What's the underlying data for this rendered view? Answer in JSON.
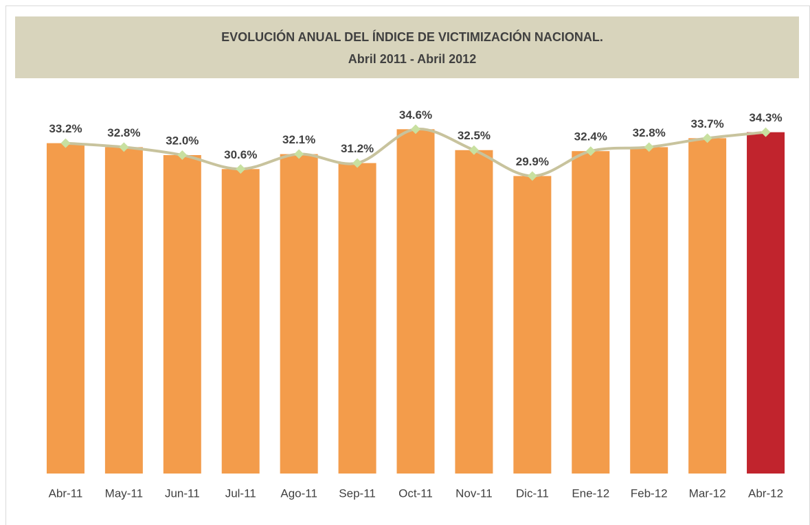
{
  "chart_data": {
    "type": "bar-line",
    "title": "EVOLUCIÓN ANUAL DEL ÍNDICE DE VICTIMIZACIÓN NACIONAL.",
    "subtitle": "Abril 2011 - Abril 2012",
    "categories": [
      "Abr-11",
      "May-11",
      "Jun-11",
      "Jul-11",
      "Ago-11",
      "Sep-11",
      "Oct-11",
      "Nov-11",
      "Dic-11",
      "Ene-12",
      "Feb-12",
      "Mar-12",
      "Abr-12"
    ],
    "values": [
      33.2,
      32.8,
      32.0,
      30.6,
      32.1,
      31.2,
      34.6,
      32.5,
      29.9,
      32.4,
      32.8,
      33.7,
      34.3
    ],
    "value_labels": [
      "33.2%",
      "32.8%",
      "32.0%",
      "30.6%",
      "32.1%",
      "31.2%",
      "34.6%",
      "32.5%",
      "29.9%",
      "32.4%",
      "32.8%",
      "33.7%",
      "34.3%"
    ],
    "colors": [
      "#f39c4b",
      "#f39c4b",
      "#f39c4b",
      "#f39c4b",
      "#f39c4b",
      "#f39c4b",
      "#f39c4b",
      "#f39c4b",
      "#f39c4b",
      "#f39c4b",
      "#f39c4b",
      "#f39c4b",
      "#c1242d"
    ],
    "line_color": "#c8c39d",
    "marker_color": "#c8e0a0",
    "ylim": [
      0,
      40
    ]
  }
}
